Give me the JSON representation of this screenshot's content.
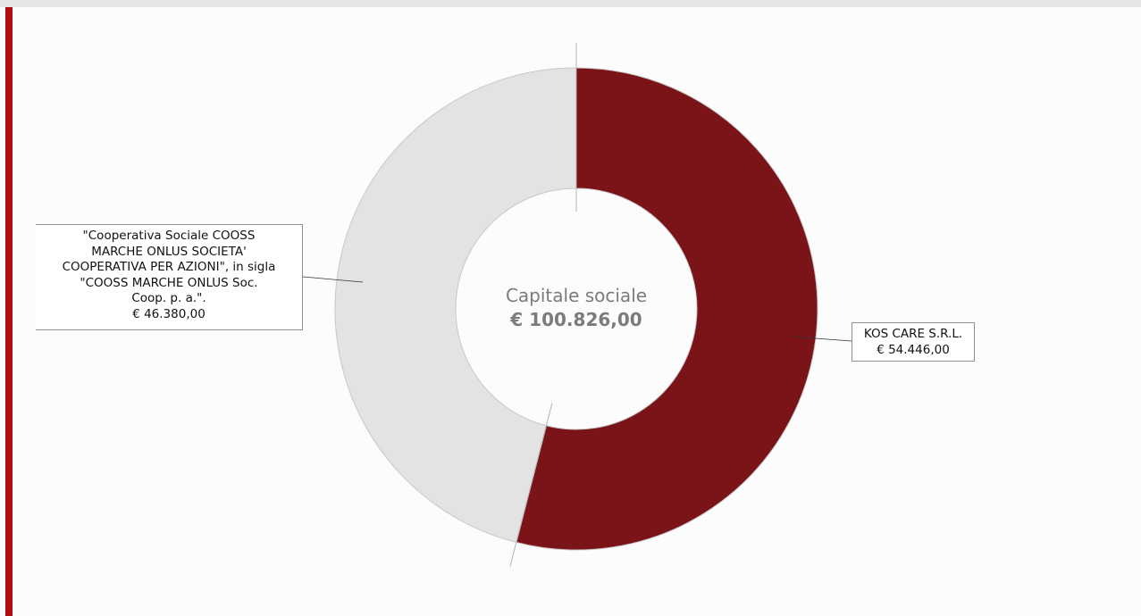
{
  "chart_data": {
    "type": "pie",
    "variant": "donut",
    "center_title": "Capitale sociale",
    "center_value": "€ 100.826,00",
    "total": 100826.0,
    "slices": [
      {
        "name": "KOS CARE S.R.L.",
        "value": 54446.0,
        "label_text": "KOS CARE S.R.L.\n€ 54.446,00",
        "color": "#7a1418"
      },
      {
        "name": "\"Cooperativa Sociale COOSS MARCHE ONLUS SOCIETA' COOPERATIVA PER AZIONI\", in sigla \"COOSS MARCHE ONLUS Soc. Coop. p. a.\".",
        "value": 46380.0,
        "label_text": "\"Cooperativa Sociale COOSS\nMARCHE ONLUS SOCIETA'\nCOOPERATIVA PER AZIONI\", in sigla\n\"COOSS MARCHE ONLUS Soc.\nCoop. p. a.\".\n€ 46.380,00",
        "color": "#e3e3e3"
      }
    ]
  },
  "colors": {
    "accent": "#b10e10",
    "top_bar": "#e6e6e6",
    "center_text": "#7b7b7b",
    "slice_border": "#c8c8c8"
  }
}
